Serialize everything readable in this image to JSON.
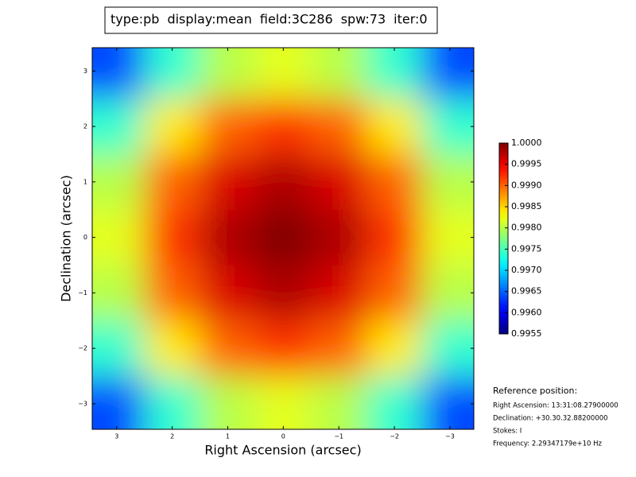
{
  "header": {
    "parts": [
      "type:pb",
      "display:mean",
      "field:3C286",
      "spw:73",
      "iter:0"
    ]
  },
  "chart_data": {
    "type": "heatmap",
    "x_label": "Right Ascension (arcsec)",
    "y_label": "Declination (arcsec)",
    "x": [
      3,
      2,
      1,
      0,
      -1,
      -2,
      -3
    ],
    "y": [
      3,
      2,
      1,
      0,
      -1,
      -2,
      -3
    ],
    "z": [
      [
        0.9964,
        0.9974,
        0.998,
        0.9982,
        0.998,
        0.9974,
        0.9964
      ],
      [
        0.9974,
        0.9984,
        0.999,
        0.9992,
        0.999,
        0.9984,
        0.9974
      ],
      [
        0.998,
        0.999,
        0.9996,
        0.9998,
        0.9996,
        0.999,
        0.998
      ],
      [
        0.9982,
        0.9992,
        0.9998,
        1.0,
        0.9998,
        0.9992,
        0.9982
      ],
      [
        0.998,
        0.999,
        0.9996,
        0.9998,
        0.9996,
        0.999,
        0.998
      ],
      [
        0.9974,
        0.9984,
        0.999,
        0.9992,
        0.999,
        0.9984,
        0.9974
      ],
      [
        0.9964,
        0.9974,
        0.998,
        0.9982,
        0.998,
        0.9974,
        0.9964
      ]
    ],
    "xlim": [
      3.44,
      -3.43
    ],
    "ylim": [
      -3.46,
      3.42
    ],
    "xticks": [
      3,
      2,
      1,
      0,
      {
        "value": -1,
        "label": "−1"
      },
      {
        "value": -2,
        "label": "−2"
      },
      {
        "value": -3,
        "label": "−3"
      }
    ],
    "yticks": [
      3,
      2,
      1,
      0,
      {
        "value": -1,
        "label": "−1"
      },
      {
        "value": -2,
        "label": "−2"
      },
      {
        "value": -3,
        "label": "−3"
      }
    ],
    "colormap": "jet",
    "clim": [
      0.9955,
      1.0
    ],
    "cticks": [
      {
        "value": 1.0,
        "label": "1.0000"
      },
      {
        "value": 0.9995,
        "label": "0.9995"
      },
      {
        "value": 0.999,
        "label": "0.9990"
      },
      {
        "value": 0.9985,
        "label": "0.9985"
      },
      {
        "value": 0.998,
        "label": "0.9980"
      },
      {
        "value": 0.9975,
        "label": "0.9975"
      },
      {
        "value": 0.997,
        "label": "0.9970"
      },
      {
        "value": 0.9965,
        "label": "0.9965"
      },
      {
        "value": 0.996,
        "label": "0.9960"
      },
      {
        "value": 0.9955,
        "label": "0.9955"
      }
    ]
  },
  "reference": {
    "title": "Reference position:",
    "lines": [
      "Right Ascension: 13:31:08.27900000",
      "Declination: +30.30.32.88200000",
      "Stokes: I",
      "Frequency: 2.29347179e+10 Hz"
    ]
  }
}
